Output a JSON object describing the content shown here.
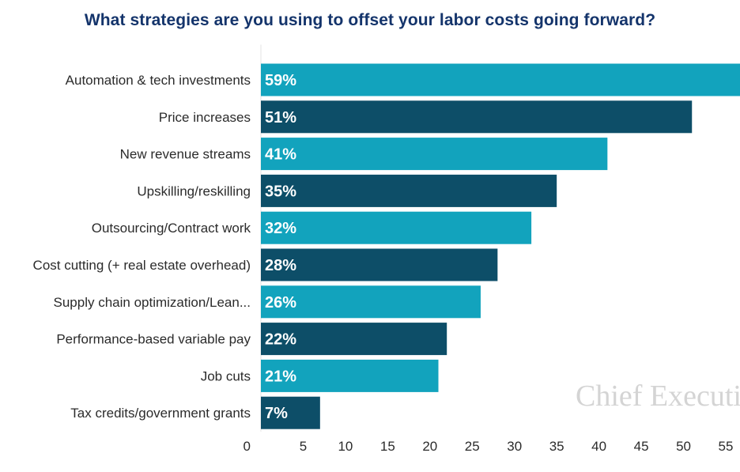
{
  "chart_data": {
    "type": "bar",
    "orientation": "horizontal",
    "title": "What strategies are you using to offset your labor costs going forward?",
    "categories": [
      "Automation & tech investments",
      "Price increases",
      "New revenue streams",
      "Upskilling/reskilling",
      "Outsourcing/Contract work",
      "Cost cutting (+ real estate overhead)",
      "Supply chain optimization/Lean...",
      "Performance-based variable pay",
      "Job cuts",
      "Tax credits/government grants"
    ],
    "values": [
      59,
      51,
      41,
      35,
      32,
      28,
      26,
      22,
      21,
      7
    ],
    "data_labels": [
      "59%",
      "51%",
      "41%",
      "35%",
      "32%",
      "28%",
      "26%",
      "22%",
      "21%",
      "7%"
    ],
    "xlim": [
      0,
      55
    ],
    "xticks": [
      0,
      5,
      10,
      15,
      20,
      25,
      30,
      35,
      40,
      45,
      50,
      55
    ],
    "xlabel": "",
    "ylabel": "",
    "colors": [
      "#12a3bd",
      "#0d4e68"
    ],
    "watermark": "Chief Executive"
  }
}
